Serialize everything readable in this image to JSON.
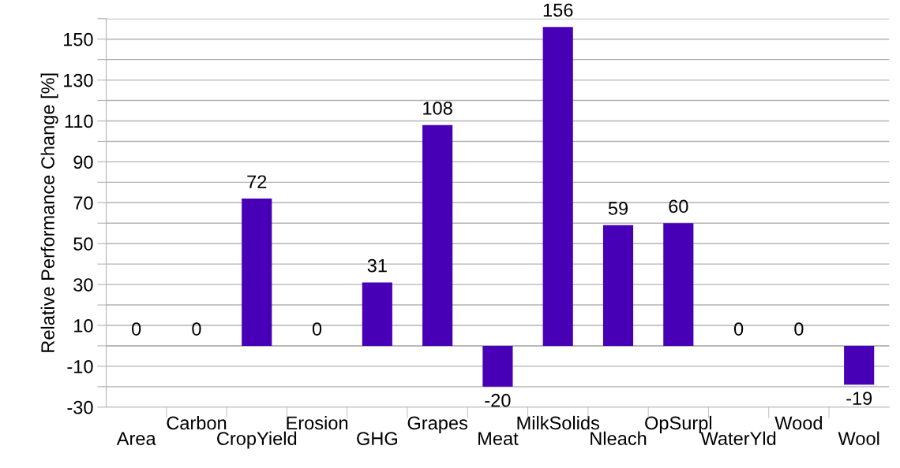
{
  "chart_data": {
    "type": "bar",
    "ylabel": "Relative Performance Change [%]",
    "categories": [
      "Area",
      "Carbon",
      "CropYield",
      "Erosion",
      "GHG",
      "Grapes",
      "Meat",
      "MilkSolids",
      "Nleach",
      "OpSurpl",
      "WaterYld",
      "Wood",
      "Wool"
    ],
    "values": [
      0,
      0,
      72,
      0,
      31,
      108,
      -20,
      156,
      59,
      60,
      0,
      0,
      -19
    ],
    "color": "#4700b5",
    "data_labels": true,
    "grid": "y",
    "legend": false,
    "ylim": [
      -30,
      160
    ],
    "yticks": [
      -30,
      {
        "value": -20,
        "label": null
      },
      -10,
      {
        "value": 0,
        "label": null
      },
      10,
      {
        "value": 20,
        "label": null
      },
      30,
      {
        "value": 40,
        "label": null
      },
      50,
      {
        "value": 60,
        "label": null
      },
      70,
      {
        "value": 80,
        "label": null
      },
      90,
      {
        "value": 100,
        "label": null
      },
      110,
      {
        "value": 120,
        "label": null
      },
      130,
      {
        "value": 140,
        "label": null
      },
      150,
      {
        "value": 160,
        "label": null
      }
    ]
  }
}
